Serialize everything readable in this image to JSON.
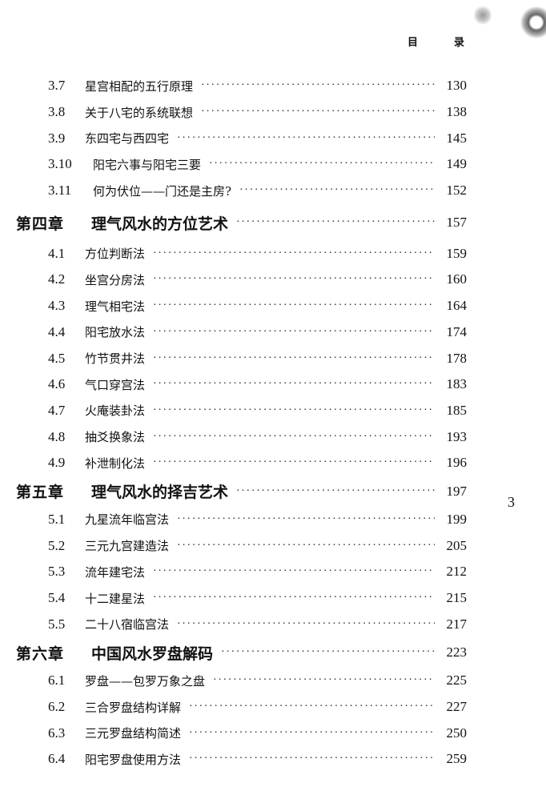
{
  "header": {
    "left": "目",
    "right": "录"
  },
  "page_number": "3",
  "toc": [
    {
      "type": "sub",
      "num": "3.7",
      "title": "星宫相配的五行原理",
      "page": "130"
    },
    {
      "type": "sub",
      "num": "3.8",
      "title": "关于八宅的系统联想",
      "page": "138"
    },
    {
      "type": "sub",
      "num": "3.9",
      "title": "东四宅与西四宅",
      "page": "145"
    },
    {
      "type": "sub",
      "num": "3.10",
      "title": "阳宅六事与阳宅三要",
      "page": "149"
    },
    {
      "type": "sub",
      "num": "3.11",
      "title": "何为伏位——门还是主房?",
      "page": "152"
    },
    {
      "type": "ch",
      "num": "第四章",
      "title": "理气风水的方位艺术",
      "page": "157"
    },
    {
      "type": "sub",
      "num": "4.1",
      "title": "方位判断法",
      "page": "159"
    },
    {
      "type": "sub",
      "num": "4.2",
      "title": "坐宫分房法",
      "page": "160"
    },
    {
      "type": "sub",
      "num": "4.3",
      "title": "理气相宅法",
      "page": "164"
    },
    {
      "type": "sub",
      "num": "4.4",
      "title": "阳宅放水法",
      "page": "174"
    },
    {
      "type": "sub",
      "num": "4.5",
      "title": "竹节贯井法",
      "page": "178"
    },
    {
      "type": "sub",
      "num": "4.6",
      "title": "气口穿宫法",
      "page": "183"
    },
    {
      "type": "sub",
      "num": "4.7",
      "title": "火庵装卦法",
      "page": "185"
    },
    {
      "type": "sub",
      "num": "4.8",
      "title": "抽爻换象法",
      "page": "193"
    },
    {
      "type": "sub",
      "num": "4.9",
      "title": "补泄制化法",
      "page": "196"
    },
    {
      "type": "ch",
      "num": "第五章",
      "title": "理气风水的择吉艺术",
      "page": "197"
    },
    {
      "type": "sub",
      "num": "5.1",
      "title": "九星流年临宫法",
      "page": "199"
    },
    {
      "type": "sub",
      "num": "5.2",
      "title": "三元九宫建造法",
      "page": "205"
    },
    {
      "type": "sub",
      "num": "5.3",
      "title": "流年建宅法",
      "page": "212"
    },
    {
      "type": "sub",
      "num": "5.4",
      "title": "十二建星法",
      "page": "215"
    },
    {
      "type": "sub",
      "num": "5.5",
      "title": "二十八宿临宫法",
      "page": "217"
    },
    {
      "type": "ch",
      "num": "第六章",
      "title": "中国风水罗盘解码",
      "page": "223"
    },
    {
      "type": "sub",
      "num": "6.1",
      "title": "罗盘——包罗万象之盘",
      "page": "225"
    },
    {
      "type": "sub",
      "num": "6.2",
      "title": "三合罗盘结构详解",
      "page": "227"
    },
    {
      "type": "sub",
      "num": "6.3",
      "title": "三元罗盘结构简述",
      "page": "250"
    },
    {
      "type": "sub",
      "num": "6.4",
      "title": "阳宅罗盘使用方法",
      "page": "259"
    }
  ]
}
